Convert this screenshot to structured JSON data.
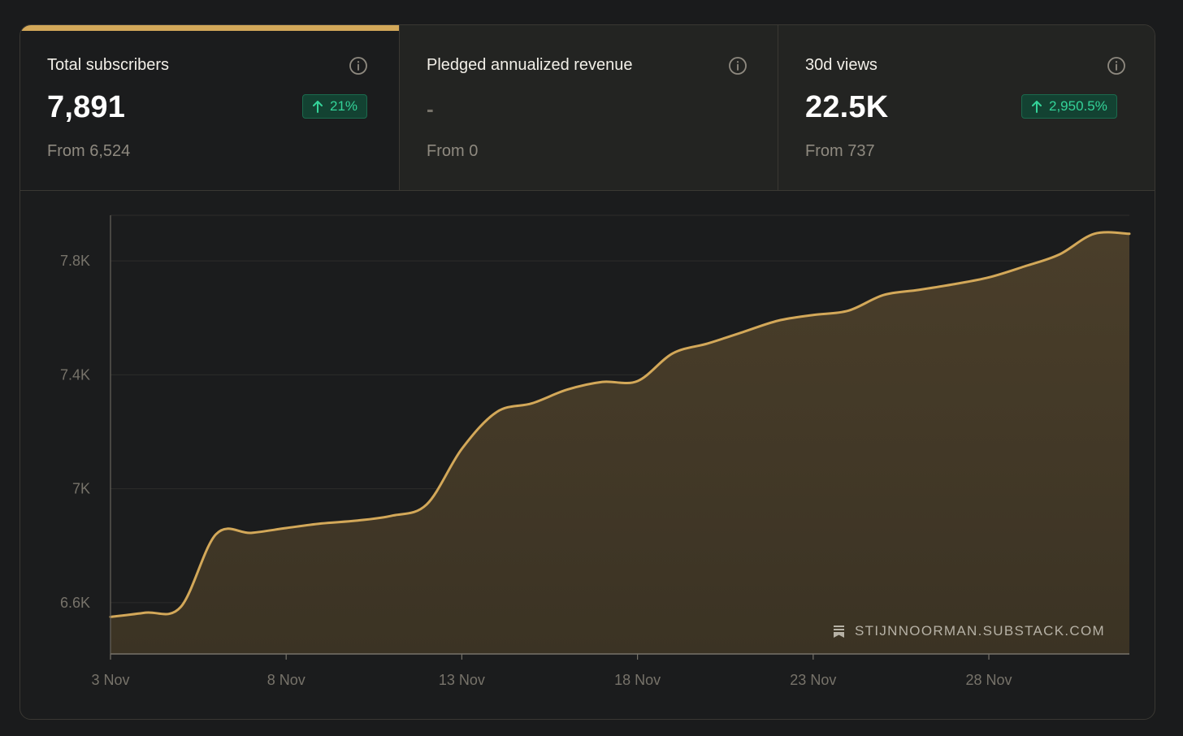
{
  "stats": [
    {
      "title": "Total subscribers",
      "value": "7,891",
      "delta": "21%",
      "from": "From 6,524",
      "active": true
    },
    {
      "title": "Pledged annualized revenue",
      "value": "-",
      "from": "From 0",
      "active": false
    },
    {
      "title": "30d views",
      "value": "22.5K",
      "delta": "2,950.5%",
      "from": "From 737",
      "active": false
    }
  ],
  "watermark": "STIJNNOORMAN.SUBSTACK.COM",
  "colors": {
    "accent": "#d3a859",
    "area_fill": "#463b28",
    "positive": "#34d399",
    "badge_bg": "#134232"
  },
  "chart_data": {
    "type": "area",
    "title": "",
    "xlabel": "",
    "ylabel": "",
    "x_tick_labels": [
      "3 Nov",
      "8 Nov",
      "13 Nov",
      "18 Nov",
      "23 Nov",
      "28 Nov"
    ],
    "y_tick_labels": [
      "6.6K",
      "7K",
      "7.4K",
      "7.8K"
    ],
    "ylim": [
      6420,
      7960
    ],
    "grid": true,
    "x": [
      "3 Nov",
      "4 Nov",
      "5 Nov",
      "6 Nov",
      "7 Nov",
      "8 Nov",
      "9 Nov",
      "10 Nov",
      "11 Nov",
      "12 Nov",
      "13 Nov",
      "14 Nov",
      "15 Nov",
      "16 Nov",
      "17 Nov",
      "18 Nov",
      "19 Nov",
      "20 Nov",
      "21 Nov",
      "22 Nov",
      "23 Nov",
      "24 Nov",
      "25 Nov",
      "26 Nov",
      "27 Nov",
      "28 Nov",
      "29 Nov",
      "30 Nov",
      "1 Dec",
      "2 Dec"
    ],
    "series": [
      {
        "values": [
          6550,
          6565,
          6585,
          6840,
          6845,
          6862,
          6878,
          6888,
          6905,
          6945,
          7140,
          7270,
          7300,
          7348,
          7375,
          7378,
          7475,
          7510,
          7550,
          7590,
          7610,
          7625,
          7680,
          7698,
          7718,
          7742,
          7780,
          7822,
          7895,
          7895
        ]
      }
    ]
  }
}
